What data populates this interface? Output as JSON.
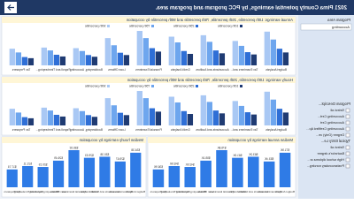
{
  "header": {
    "title": "2021 Pima County potential earnings, by PCC program and program area."
  },
  "filters": {
    "program_area": {
      "label": "Program Area",
      "value": "Accounting"
    },
    "program_description": {
      "label": "Program Descript...",
      "options": [
        "Select all",
        "Accounting Cert...",
        "Accounting Cert",
        "Accounting Certified Ap...",
        "Degree (Only) ve..."
      ]
    },
    "entry_level": {
      "label": "Typical Entry Le...",
      "options": [
        "Select all",
        "Bachelor's degree",
        "High school diploma or...",
        "Postsecondary nondeg..."
      ]
    }
  },
  "chart_data": [
    {
      "type": "grouped-bar",
      "title": "Annual earnings: 10th percentile, 25th percentile, 75th percentile and 90th percentile by occupation",
      "categories": [
        "Budget Analysts",
        "Tax Examiners and...",
        "Accountants and Auditors",
        "Credit Analysts",
        "Financial Examiners",
        "Loan Officers",
        "Bookkeeping, Accounting...",
        "Payroll and Timekeeping...",
        "Tax Preparers"
      ],
      "series": [
        {
          "name": "10th percentile",
          "color": "#1f3b73",
          "values": [
            45000,
            38000,
            42000,
            40000,
            48000,
            36000,
            30000,
            31000,
            25000
          ]
        },
        {
          "name": "25th percentile",
          "color": "#2f6fd6",
          "values": [
            58000,
            46000,
            52000,
            50000,
            60000,
            44000,
            36000,
            37000,
            29000
          ]
        },
        {
          "name": "75th percentile",
          "color": "#6ea6ee",
          "values": [
            90000,
            68000,
            82000,
            80000,
            95000,
            70000,
            50000,
            52000,
            45000
          ]
        },
        {
          "name": "90th percentile",
          "color": "#a9c8f4",
          "values": [
            117500,
            85000,
            105000,
            100000,
            120000,
            95000,
            60000,
            62000,
            58000
          ]
        }
      ]
    },
    {
      "type": "grouped-bar",
      "title": "Hourly earnings: 10th percentile, 25th percentile, 75th percentile and 90th percentile by occupation",
      "categories": [
        "Budget Analysts",
        "Tax Examiners and...",
        "Accountants and Auditors",
        "Credit Analysts",
        "Financial Examiners",
        "Loan Officers",
        "Bookkeeping, Accounting...",
        "Payroll and Timekeeping...",
        "Tax Preparers"
      ],
      "series": [
        {
          "name": "10th percentile",
          "color": "#1f3b73",
          "values": [
            21.6,
            18.3,
            20.2,
            19.2,
            23.1,
            17.3,
            14.4,
            14.9,
            12.0
          ]
        },
        {
          "name": "25th percentile",
          "color": "#2f6fd6",
          "values": [
            27.9,
            22.1,
            25.0,
            24.0,
            28.8,
            21.2,
            17.3,
            17.8,
            13.9
          ]
        },
        {
          "name": "75th percentile",
          "color": "#6ea6ee",
          "values": [
            43.3,
            32.7,
            39.4,
            38.5,
            45.7,
            33.7,
            24.0,
            25.0,
            21.6
          ]
        },
        {
          "name": "90th percentile",
          "color": "#a9c8f4",
          "values": [
            56.5,
            40.9,
            50.5,
            48.1,
            57.7,
            45.7,
            28.8,
            29.8,
            27.9
          ]
        }
      ]
    },
    {
      "type": "bar",
      "title": "Median annual earnings by occupation",
      "color": "#2f7be6",
      "categories": [
        "Budget Analysts",
        "Tax Examiners and...",
        "Accountants and Auditors",
        "Credit Analysts",
        "Financial Examiners",
        "Loan Officers",
        "Bookkeeping, Accounting...",
        "Payroll and Timekeeping...",
        "Tax Preparers"
      ],
      "values": [
        71500,
        53400,
        63200,
        61000,
        76800,
        55100,
        42000,
        43900,
        36900
      ],
      "value_labels": [
        "$71.5K",
        "$53.4K",
        "$63.2K",
        "$61.0K",
        "$76.8K",
        "$55.1K",
        "$42.0K",
        "$43.9K",
        "$36.9K"
      ]
    },
    {
      "type": "bar",
      "title": "Median hourly earnings by occupation",
      "color": "#2f7be6",
      "categories": [
        "Budget Analysts",
        "Tax Examiners and...",
        "Accountants and Auditors",
        "Credit Analysts",
        "Financial Examiners",
        "Loan Officers",
        "Bookkeeping, Accounting...",
        "Payroll and Timekeeping...",
        "Tax Preparers"
      ],
      "values": [
        34.38,
        25.67,
        30.38,
        29.33,
        36.92,
        26.49,
        20.19,
        21.11,
        17.74
      ],
      "value_labels": [
        "$34.38",
        "$25.67",
        "$30.38",
        "$29.33",
        "$36.92",
        "$26.49",
        "$20.19",
        "$21.11",
        "$17.74"
      ]
    }
  ]
}
